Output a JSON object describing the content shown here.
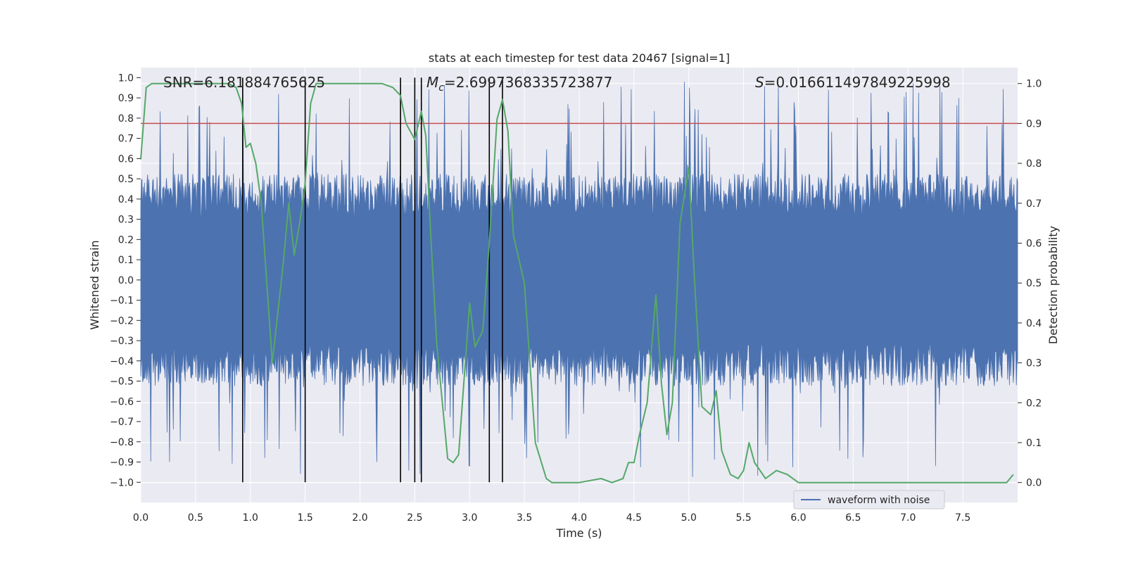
{
  "chart_data": {
    "type": "line",
    "title": "stats at each timestep for test data 20467 [signal=1]",
    "xlabel": "Time (s)",
    "ylabel_left": "Whitened strain",
    "ylabel_right": "Detection probability",
    "xlim": [
      0,
      8
    ],
    "ylim_left": [
      -1.1,
      1.05
    ],
    "ylim_right": [
      -0.05,
      1.04
    ],
    "x_ticks": [
      "0.0",
      "0.5",
      "1.0",
      "1.5",
      "2.0",
      "2.5",
      "3.0",
      "3.5",
      "4.0",
      "4.5",
      "5.0",
      "5.5",
      "6.0",
      "6.5",
      "7.0",
      "7.5"
    ],
    "y_ticks_left": [
      "1.0",
      "0.9",
      "0.8",
      "0.7",
      "0.6",
      "0.5",
      "0.4",
      "0.3",
      "0.2",
      "0.1",
      "0.0",
      "-0.1",
      "-0.2",
      "-0.3",
      "-0.4",
      "-0.5",
      "-0.6",
      "-0.7",
      "-0.8",
      "-0.9",
      "-1.0"
    ],
    "y_ticks_right": [
      "1.0",
      "0.9",
      "0.8",
      "0.7",
      "0.6",
      "0.5",
      "0.4",
      "0.3",
      "0.2",
      "0.1",
      "0.0"
    ],
    "grid": true,
    "legend_position": "lower-right",
    "annotations": {
      "snr": "SNR=6.181884765625",
      "mc_symbol": "M",
      "mc_sub": "c",
      "mc_value": "=2.6997368335723877",
      "s_symbol": "S",
      "s_value": "=0.016611497849225998"
    },
    "threshold": {
      "probability": 0.9,
      "color": "#c44e52"
    },
    "vertical_markers": [
      0.93,
      1.5,
      2.37,
      2.5,
      2.56,
      3.18,
      3.3
    ],
    "series": [
      {
        "name": "waveform with noise",
        "color": "#4c72b0",
        "axis": "left",
        "envelope_typical": 0.42,
        "envelope_peak": 0.98
      },
      {
        "axis": "right",
        "color": "#55a868",
        "x": [
          0.0,
          0.05,
          0.1,
          0.2,
          0.3,
          0.5,
          0.7,
          0.8,
          0.87,
          0.92,
          0.96,
          1.0,
          1.05,
          1.1,
          1.2,
          1.3,
          1.35,
          1.4,
          1.45,
          1.5,
          1.55,
          1.6,
          1.7,
          1.8,
          2.0,
          2.2,
          2.3,
          2.37,
          2.42,
          2.5,
          2.56,
          2.6,
          2.65,
          2.7,
          2.8,
          2.85,
          2.9,
          3.0,
          3.05,
          3.12,
          3.18,
          3.25,
          3.3,
          3.35,
          3.4,
          3.5,
          3.55,
          3.6,
          3.7,
          3.75,
          3.8,
          4.0,
          4.2,
          4.3,
          4.4,
          4.45,
          4.5,
          4.55,
          4.62,
          4.7,
          4.75,
          4.8,
          4.85,
          4.92,
          5.0,
          5.05,
          5.12,
          5.2,
          5.25,
          5.3,
          5.38,
          5.45,
          5.5,
          5.55,
          5.6,
          5.65,
          5.7,
          5.8,
          5.9,
          6.0,
          6.05,
          6.2,
          6.5,
          6.8,
          7.0,
          7.2,
          7.5,
          7.7,
          7.9,
          7.96
        ],
        "y": [
          0.81,
          0.99,
          1.0,
          1.0,
          1.0,
          1.0,
          1.0,
          1.0,
          0.99,
          0.95,
          0.84,
          0.85,
          0.8,
          0.7,
          0.3,
          0.55,
          0.7,
          0.57,
          0.65,
          0.75,
          0.95,
          1.0,
          1.0,
          1.0,
          1.0,
          1.0,
          0.99,
          0.97,
          0.9,
          0.86,
          0.93,
          0.87,
          0.6,
          0.35,
          0.06,
          0.05,
          0.07,
          0.45,
          0.34,
          0.38,
          0.6,
          0.91,
          0.96,
          0.88,
          0.62,
          0.5,
          0.3,
          0.1,
          0.01,
          0.0,
          0.0,
          0.0,
          0.01,
          0.0,
          0.01,
          0.05,
          0.05,
          0.12,
          0.2,
          0.47,
          0.25,
          0.12,
          0.2,
          0.65,
          0.79,
          0.52,
          0.19,
          0.17,
          0.23,
          0.08,
          0.02,
          0.01,
          0.03,
          0.1,
          0.05,
          0.03,
          0.01,
          0.03,
          0.02,
          0.0,
          0.0,
          0.0,
          0.0,
          0.0,
          0.0,
          0.0,
          0.0,
          0.0,
          0.0,
          0.02
        ]
      }
    ]
  }
}
